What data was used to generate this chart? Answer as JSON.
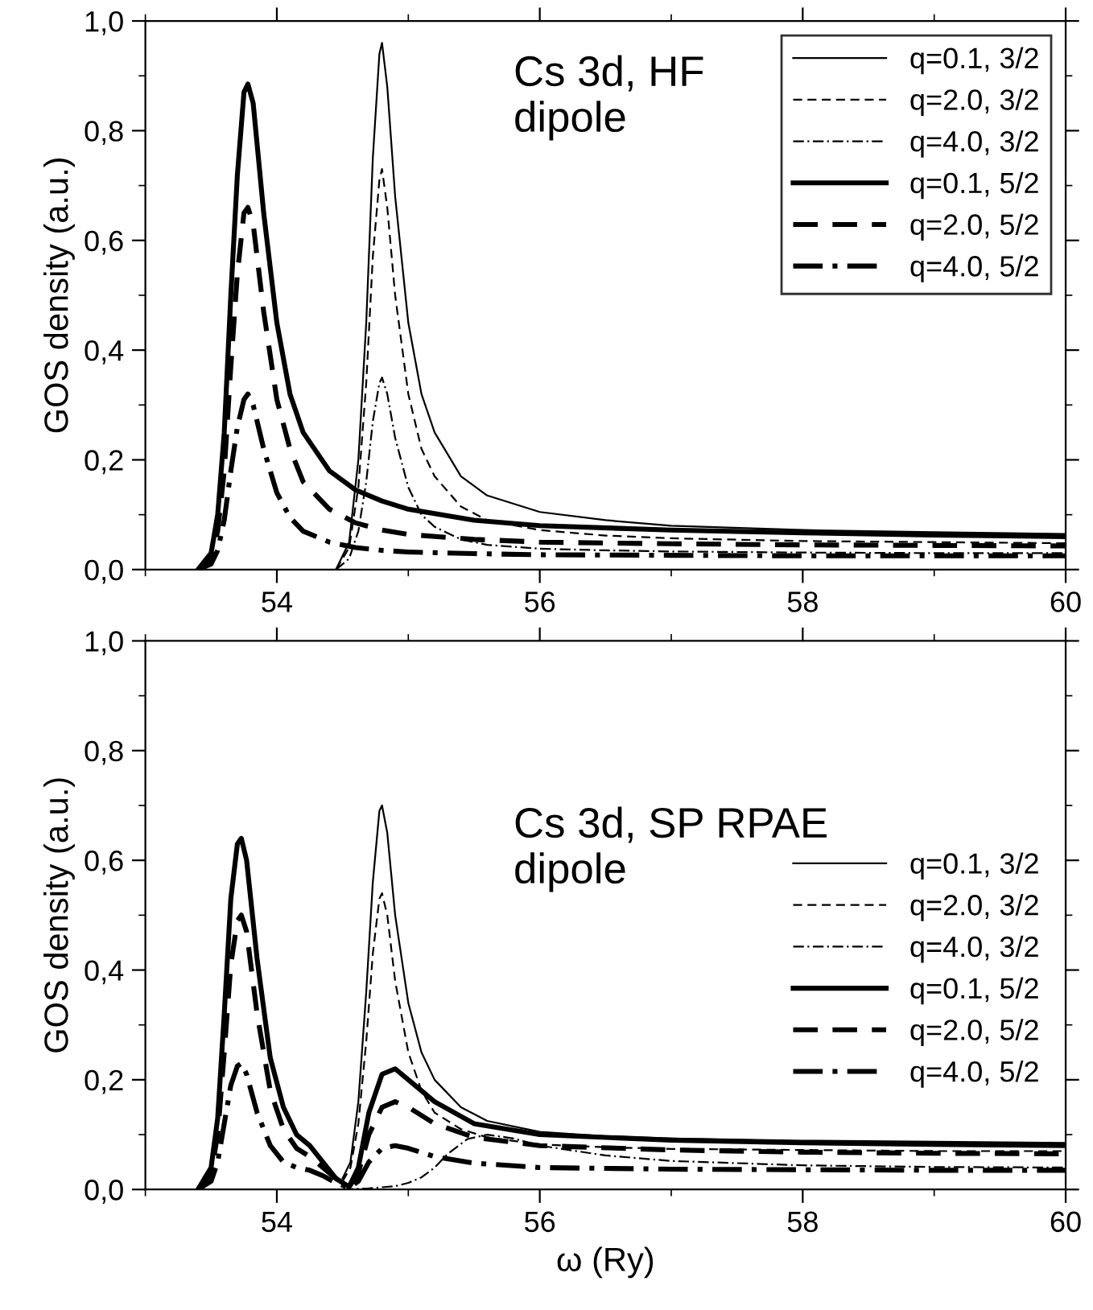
{
  "chart_data": [
    {
      "type": "line",
      "ylabel": "GOS density (a.u.)",
      "annotations": [
        "Cs 3d, HF\ndipole"
      ],
      "xlim": [
        53,
        60
      ],
      "xticks": [
        54,
        56,
        58,
        60
      ],
      "ylim": [
        0,
        1.0
      ],
      "yticks": [
        {
          "value": 0,
          "label": "0,0"
        },
        {
          "value": 0.2,
          "label": "0,2"
        },
        {
          "value": 0.4,
          "label": "0,4"
        },
        {
          "value": 0.6,
          "label": "0,6"
        },
        {
          "value": 0.8,
          "label": "0,8"
        },
        {
          "value": 1.0,
          "label": "1,0"
        }
      ],
      "grid": false,
      "legend": "top right",
      "series": [
        {
          "name": "q=0.1, 3/2",
          "color": "#000000",
          "line_style": "solid",
          "x": [
            54.45,
            54.55,
            54.62,
            54.68,
            54.73,
            54.78,
            54.8,
            54.84,
            54.9,
            55.0,
            55.1,
            55.2,
            55.4,
            55.6,
            56,
            56.5,
            57,
            58,
            59,
            60
          ],
          "values": [
            0,
            0.05,
            0.2,
            0.45,
            0.75,
            0.94,
            0.96,
            0.88,
            0.68,
            0.45,
            0.32,
            0.25,
            0.17,
            0.135,
            0.105,
            0.09,
            0.08,
            0.072,
            0.068,
            0.065
          ]
        },
        {
          "name": "q=2.0, 3/2",
          "color": "#000000",
          "line_style": "dashed",
          "x": [
            54.45,
            54.55,
            54.62,
            54.68,
            54.73,
            54.78,
            54.8,
            54.84,
            54.9,
            55.0,
            55.1,
            55.2,
            55.4,
            55.6,
            56,
            56.5,
            57,
            58,
            59,
            60
          ],
          "values": [
            0,
            0.04,
            0.15,
            0.34,
            0.57,
            0.71,
            0.73,
            0.66,
            0.5,
            0.32,
            0.22,
            0.17,
            0.115,
            0.09,
            0.072,
            0.062,
            0.057,
            0.052,
            0.05,
            0.048
          ]
        },
        {
          "name": "q=4.0, 3/2",
          "color": "#000000",
          "line_style": "dashdot",
          "x": [
            54.45,
            54.55,
            54.62,
            54.68,
            54.73,
            54.78,
            54.8,
            54.84,
            54.9,
            55.0,
            55.1,
            55.2,
            55.4,
            55.6,
            56,
            56.5,
            57,
            58,
            59,
            60
          ],
          "values": [
            0,
            0.02,
            0.07,
            0.16,
            0.27,
            0.34,
            0.35,
            0.32,
            0.24,
            0.15,
            0.1,
            0.078,
            0.055,
            0.045,
            0.038,
            0.035,
            0.033,
            0.031,
            0.03,
            0.03
          ]
        },
        {
          "name": "q=0.1, 5/2",
          "color": "#000000",
          "line_style": "solid",
          "x": [
            53.4,
            53.5,
            53.55,
            53.6,
            53.65,
            53.7,
            53.75,
            53.78,
            53.82,
            53.9,
            54.0,
            54.1,
            54.2,
            54.4,
            54.6,
            54.8,
            55,
            55.5,
            56,
            57,
            58,
            59,
            60
          ],
          "values": [
            0,
            0.03,
            0.1,
            0.25,
            0.5,
            0.72,
            0.87,
            0.885,
            0.85,
            0.65,
            0.45,
            0.32,
            0.25,
            0.18,
            0.145,
            0.125,
            0.11,
            0.09,
            0.08,
            0.072,
            0.067,
            0.063,
            0.06
          ]
        },
        {
          "name": "q=2.0, 5/2",
          "color": "#000000",
          "line_style": "dashed",
          "x": [
            53.4,
            53.5,
            53.55,
            53.6,
            53.65,
            53.7,
            53.75,
            53.78,
            53.82,
            53.9,
            54.0,
            54.1,
            54.2,
            54.4,
            54.6,
            54.8,
            55,
            55.5,
            56,
            57,
            58,
            59,
            60
          ],
          "values": [
            0,
            0.02,
            0.07,
            0.18,
            0.37,
            0.54,
            0.65,
            0.66,
            0.63,
            0.47,
            0.31,
            0.22,
            0.16,
            0.11,
            0.085,
            0.072,
            0.064,
            0.055,
            0.05,
            0.047,
            0.045,
            0.044,
            0.043
          ]
        },
        {
          "name": "q=4.0, 5/2",
          "color": "#000000",
          "line_style": "dashdot",
          "x": [
            53.4,
            53.5,
            53.55,
            53.6,
            53.65,
            53.7,
            53.75,
            53.78,
            53.82,
            53.9,
            54.0,
            54.1,
            54.2,
            54.4,
            54.6,
            54.8,
            55,
            55.5,
            56,
            57,
            58,
            59,
            60
          ],
          "values": [
            0,
            0.01,
            0.035,
            0.09,
            0.18,
            0.26,
            0.31,
            0.32,
            0.3,
            0.22,
            0.14,
            0.095,
            0.07,
            0.05,
            0.04,
            0.035,
            0.032,
            0.029,
            0.027,
            0.026,
            0.025,
            0.025,
            0.025
          ]
        }
      ]
    },
    {
      "type": "line",
      "xlabel": "ω (Ry)",
      "ylabel": "GOS density (a.u.)",
      "annotations": [
        "Cs 3d, SP RPAE\ndipole"
      ],
      "xlim": [
        53,
        60
      ],
      "xticks": [
        54,
        56,
        58,
        60
      ],
      "ylim": [
        0,
        1.0
      ],
      "yticks": [
        {
          "value": 0,
          "label": "0,0"
        },
        {
          "value": 0.2,
          "label": "0,2"
        },
        {
          "value": 0.4,
          "label": "0,4"
        },
        {
          "value": 0.6,
          "label": "0,6"
        },
        {
          "value": 0.8,
          "label": "0,8"
        },
        {
          "value": 1.0,
          "label": "1,0"
        }
      ],
      "grid": false,
      "legend": "right",
      "series": [
        {
          "name": "q=0.1, 3/2",
          "color": "#000000",
          "line_style": "solid",
          "x": [
            54.5,
            54.56,
            54.62,
            54.68,
            54.73,
            54.78,
            54.8,
            54.84,
            54.9,
            55.0,
            55.1,
            55.2,
            55.4,
            55.6,
            56,
            56.5,
            57,
            58,
            59,
            60
          ],
          "values": [
            0.02,
            0.05,
            0.16,
            0.36,
            0.56,
            0.69,
            0.7,
            0.65,
            0.5,
            0.34,
            0.25,
            0.2,
            0.15,
            0.125,
            0.105,
            0.097,
            0.093,
            0.089,
            0.087,
            0.085
          ]
        },
        {
          "name": "q=2.0, 3/2",
          "color": "#000000",
          "line_style": "dashed",
          "x": [
            54.5,
            54.56,
            54.62,
            54.68,
            54.73,
            54.78,
            54.8,
            54.84,
            54.9,
            55.0,
            55.1,
            55.2,
            55.4,
            55.6,
            56,
            56.5,
            57,
            58,
            59,
            60
          ],
          "values": [
            0.015,
            0.04,
            0.12,
            0.27,
            0.43,
            0.53,
            0.54,
            0.5,
            0.38,
            0.25,
            0.18,
            0.14,
            0.11,
            0.095,
            0.082,
            0.077,
            0.074,
            0.072,
            0.07,
            0.07
          ]
        },
        {
          "name": "q=4.0, 3/2",
          "color": "#000000",
          "line_style": "dashdot",
          "x": [
            54.5,
            54.7,
            54.9,
            55.0,
            55.1,
            55.2,
            55.3,
            55.45,
            55.6,
            55.8,
            56,
            56.5,
            57,
            58,
            59,
            60
          ],
          "values": [
            0.0,
            0.002,
            0.006,
            0.012,
            0.022,
            0.04,
            0.065,
            0.092,
            0.1,
            0.093,
            0.08,
            0.062,
            0.052,
            0.044,
            0.041,
            0.04
          ]
        },
        {
          "name": "q=0.1, 5/2",
          "color": "#000000",
          "line_style": "solid",
          "x": [
            53.4,
            53.5,
            53.55,
            53.6,
            53.65,
            53.7,
            53.73,
            53.77,
            53.85,
            53.95,
            54.05,
            54.15,
            54.25,
            54.35,
            54.45,
            54.55,
            54.62,
            54.7,
            54.8,
            54.9,
            55.0,
            55.2,
            55.5,
            56,
            57,
            58,
            59,
            60
          ],
          "values": [
            0,
            0.04,
            0.13,
            0.32,
            0.53,
            0.63,
            0.64,
            0.6,
            0.42,
            0.24,
            0.15,
            0.1,
            0.08,
            0.05,
            0.02,
            0.005,
            0.04,
            0.14,
            0.21,
            0.22,
            0.2,
            0.16,
            0.12,
            0.1,
            0.09,
            0.085,
            0.082,
            0.08
          ]
        },
        {
          "name": "q=2.0, 5/2",
          "color": "#000000",
          "line_style": "dashed",
          "x": [
            53.4,
            53.5,
            53.55,
            53.6,
            53.65,
            53.7,
            53.73,
            53.77,
            53.85,
            53.95,
            54.05,
            54.15,
            54.25,
            54.35,
            54.45,
            54.55,
            54.62,
            54.7,
            54.8,
            54.9,
            55.0,
            55.2,
            55.5,
            56,
            57,
            58,
            59,
            60
          ],
          "values": [
            0,
            0.03,
            0.1,
            0.25,
            0.41,
            0.49,
            0.5,
            0.47,
            0.32,
            0.18,
            0.11,
            0.075,
            0.06,
            0.04,
            0.02,
            0.005,
            0.03,
            0.1,
            0.15,
            0.16,
            0.15,
            0.12,
            0.095,
            0.08,
            0.072,
            0.068,
            0.066,
            0.065
          ]
        },
        {
          "name": "q=4.0, 5/2",
          "color": "#000000",
          "line_style": "dashdot",
          "x": [
            53.4,
            53.5,
            53.55,
            53.6,
            53.65,
            53.7,
            53.73,
            53.77,
            53.85,
            53.95,
            54.05,
            54.15,
            54.25,
            54.35,
            54.45,
            54.55,
            54.62,
            54.7,
            54.8,
            54.9,
            55.0,
            55.2,
            55.5,
            56,
            57,
            58,
            59,
            60
          ],
          "values": [
            0,
            0.015,
            0.05,
            0.12,
            0.19,
            0.225,
            0.23,
            0.21,
            0.14,
            0.08,
            0.05,
            0.04,
            0.035,
            0.025,
            0.012,
            0.003,
            0.015,
            0.05,
            0.075,
            0.08,
            0.075,
            0.06,
            0.048,
            0.04,
            0.037,
            0.036,
            0.035,
            0.035
          ]
        }
      ]
    }
  ]
}
